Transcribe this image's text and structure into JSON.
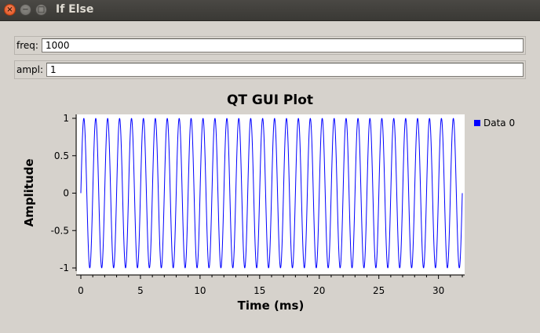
{
  "window": {
    "title": "If Else",
    "buttons": {
      "close": "×",
      "minimize": "−",
      "maximize": "□"
    }
  },
  "controls": [
    {
      "label": "freq:",
      "value": "1000"
    },
    {
      "label": "ampl:",
      "value": "1"
    }
  ],
  "chart_data": {
    "type": "line",
    "title": "QT GUI Plot",
    "xlabel": "Time (ms)",
    "ylabel": "Amplitude",
    "xlim": [
      0,
      32
    ],
    "ylim": [
      -1,
      1
    ],
    "x_ticks": [
      0,
      5,
      10,
      15,
      20,
      25,
      30
    ],
    "y_ticks": [
      1,
      0.5,
      0,
      -0.5,
      -1
    ],
    "x_tick_labels": [
      "0",
      "5",
      "10",
      "15",
      "20",
      "25",
      "30"
    ],
    "y_tick_labels": [
      "1",
      "0.5",
      "0",
      "-0.5",
      "-1"
    ],
    "series": [
      {
        "name": "Data 0",
        "color": "#0000ff",
        "function": "sine",
        "amplitude": 1,
        "frequency_hz": 1000,
        "x_start_ms": 0,
        "x_end_ms": 32
      }
    ],
    "legend": "right",
    "grid": false
  }
}
